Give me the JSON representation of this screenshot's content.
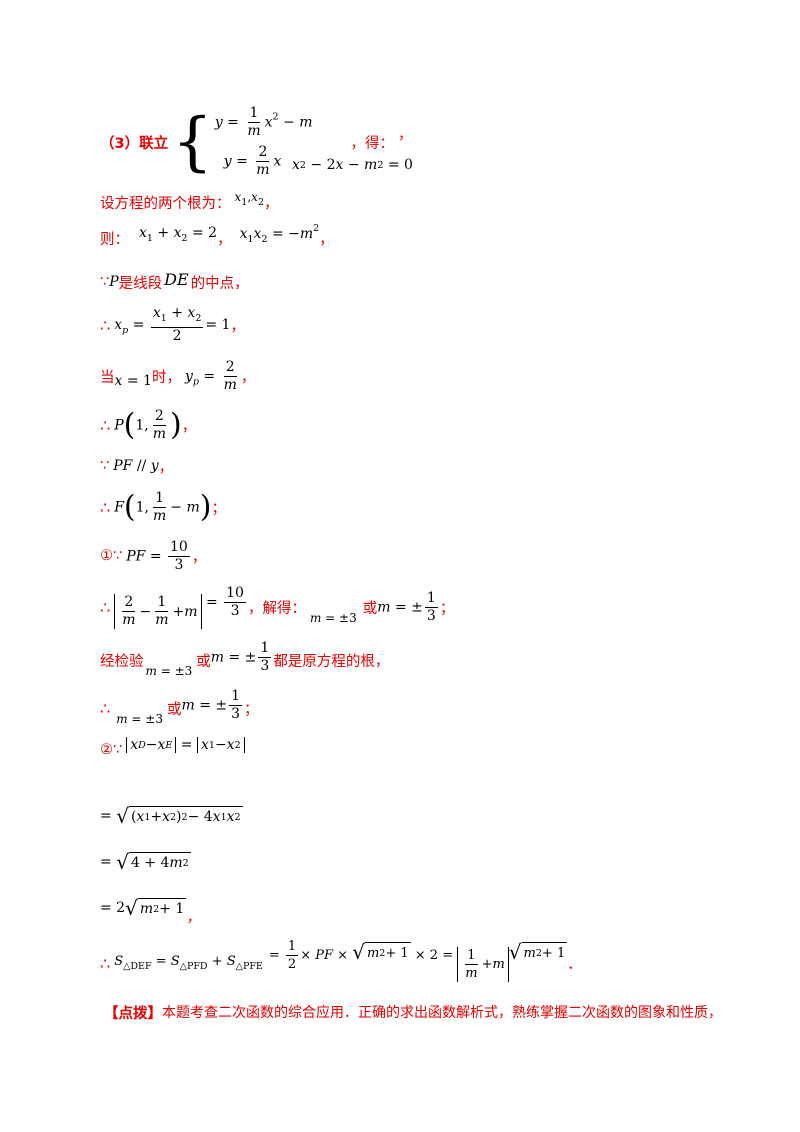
{
  "lines": {
    "l1_prefix": "（3）联立",
    "l1_mid": "，得：",
    "l1_end": "，",
    "l2_text": "设方程的两个根为：",
    "l2_end": "，",
    "l3_text": "则：",
    "l3_sep": "，",
    "l3_end": "，",
    "l4_because": "∵",
    "l4_text1": "是线段",
    "l4_text2": "的中点，",
    "l5_therefore": "∴",
    "l5_end": "，",
    "l6_text1": "当",
    "l6_text2": "时，",
    "l6_end": "，",
    "l7_therefore": "∴",
    "l7_end": "，",
    "l8_because": "∵",
    "l8_end": "，",
    "l9_therefore": "∴",
    "l9_end": "；",
    "l10_circle": "①∵",
    "l10_end": "，",
    "l11_therefore": "∴",
    "l11_solve": "，解得：",
    "l11_or": "或",
    "l11_end": "；",
    "l12_text1": "经检验",
    "l12_or": "或",
    "l12_text2": "都是原方程的根，",
    "l13_therefore": "∴",
    "l13_or": "或",
    "l13_end": "；",
    "l14_circle": "②∵",
    "l18_therefore": "∴",
    "l18_end": "．",
    "l17_end": "，",
    "l19_bracket": "【点拨】",
    "l19_text": "本题考查二次函数的综合应用．正确的求出函数解析式，熟练掌握二次函数的图象和性质，"
  }
}
